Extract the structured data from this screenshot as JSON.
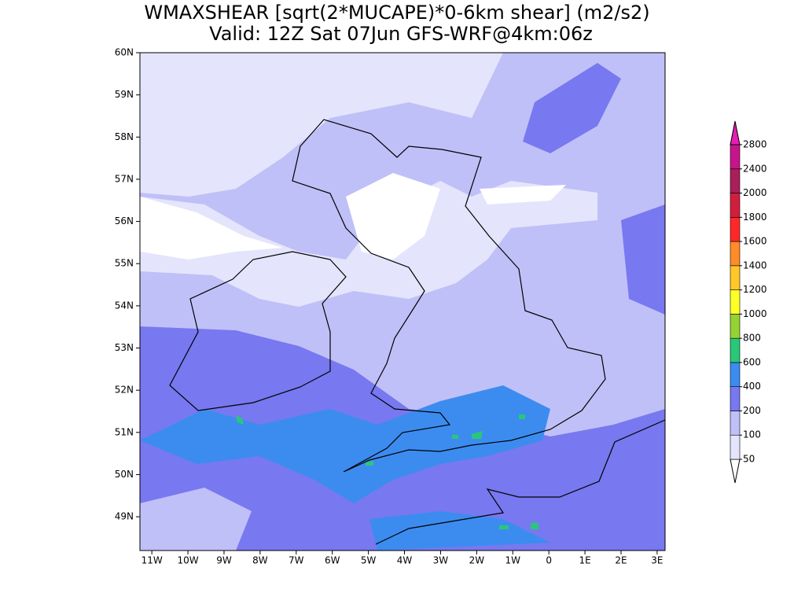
{
  "map": {
    "title": "WMAXSHEAR [sqrt(2*MUCAPE)*0-6km shear] (m2/s2)",
    "subtitle": "Valid: 12Z Sat 07Jun GFS-WRF@4km:06z",
    "xlim": [
      -11.33,
      3.22
    ],
    "ylim": [
      48.2,
      60
    ],
    "lat_ticks": [
      {
        "value": 60,
        "label": "60N"
      },
      {
        "value": 59,
        "label": "59N"
      },
      {
        "value": 58,
        "label": "58N"
      },
      {
        "value": 57,
        "label": "57N"
      },
      {
        "value": 56,
        "label": "56N"
      },
      {
        "value": 55,
        "label": "55N"
      },
      {
        "value": 54,
        "label": "54N"
      },
      {
        "value": 53,
        "label": "53N"
      },
      {
        "value": 52,
        "label": "52N"
      },
      {
        "value": 51,
        "label": "51N"
      },
      {
        "value": 50,
        "label": "50N"
      },
      {
        "value": 49,
        "label": "49N"
      }
    ],
    "lon_ticks": [
      {
        "value": -11,
        "label": "11W"
      },
      {
        "value": -10,
        "label": "10W"
      },
      {
        "value": -9,
        "label": "9W"
      },
      {
        "value": -8,
        "label": "8W"
      },
      {
        "value": -7,
        "label": "7W"
      },
      {
        "value": -6,
        "label": "6W"
      },
      {
        "value": -5,
        "label": "5W"
      },
      {
        "value": -4,
        "label": "4W"
      },
      {
        "value": -3,
        "label": "3W"
      },
      {
        "value": -2,
        "label": "2W"
      },
      {
        "value": -1,
        "label": "1W"
      },
      0,
      {
        "value": 1,
        "label": "1E"
      },
      {
        "value": 2,
        "label": "2E"
      },
      {
        "value": 3,
        "label": "3E"
      }
    ],
    "colorbar": {
      "levels": [
        50,
        100,
        200,
        400,
        600,
        800,
        1000,
        1200,
        1400,
        1600,
        1800,
        2000,
        2400,
        2800
      ],
      "colors": [
        "#ffffff",
        "#e4e4fc",
        "#c0c0f8",
        "#7878f0",
        "#3c8cf0",
        "#28c878",
        "#96d232",
        "#ffff28",
        "#ffc828",
        "#ff8c28",
        "#ff2828",
        "#d21e3c",
        "#aa1e5a",
        "#c8148c",
        "#e61eb4"
      ]
    }
  }
}
